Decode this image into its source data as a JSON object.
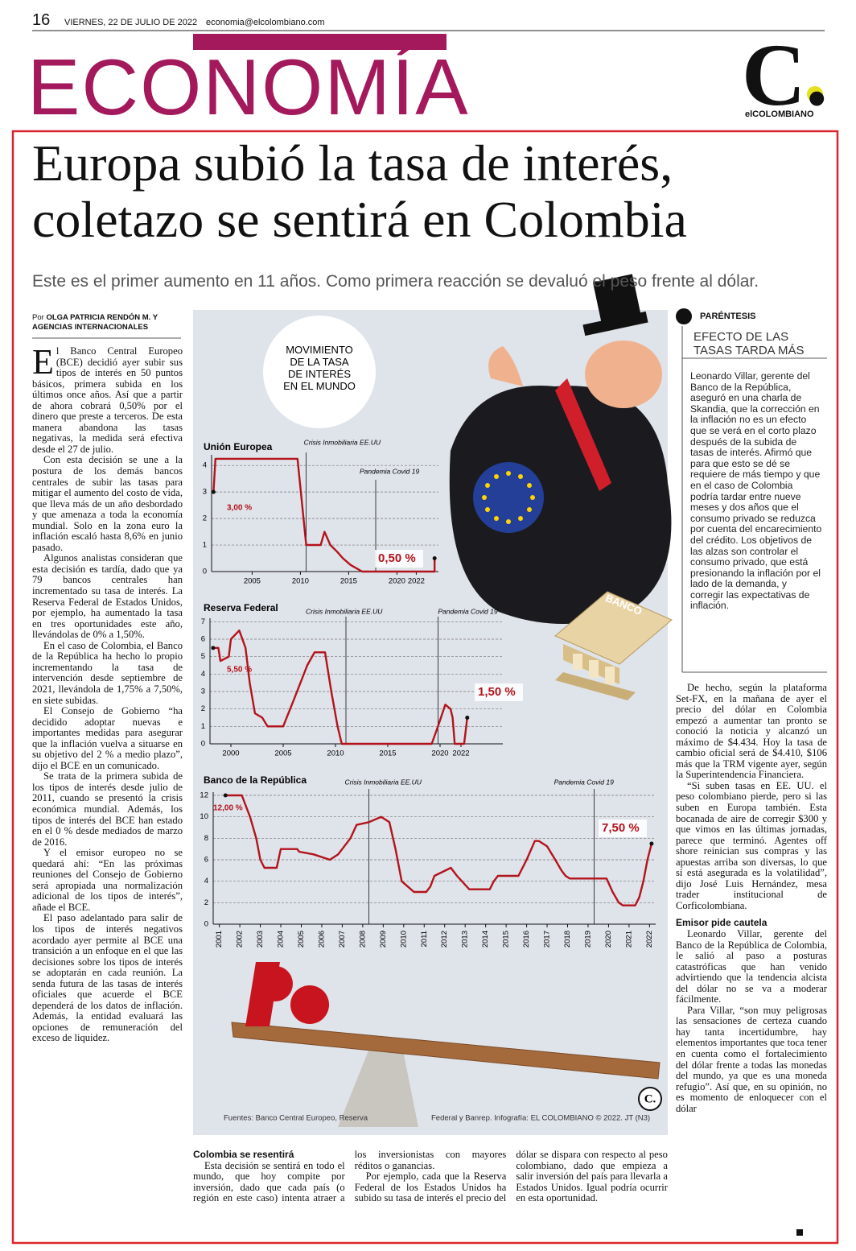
{
  "header": {
    "page_number": "16",
    "date": "VIERNES, 22 DE JULIO DE 2022",
    "email": "economia@elcolombiano.com",
    "section": "ECONOMÍA",
    "logo_mark": "C.",
    "logo_name": "elCOLOMBIANO"
  },
  "article": {
    "headline": "Europa subió la tasa de interés, coletazo se sentirá en Colombia",
    "subtitle": "Este es el primer aumento en 11 años. Como primera reacción se devaluó el peso frente al dólar.",
    "byline_prefix": "Por",
    "byline": "OLGA PATRICIA RENDÓN M. Y AGENCIAS INTERNACIONALES",
    "left_paragraphs": [
      "El Banco Central Europeo (BCE) decidió ayer subir sus tipos de interés en 50 puntos básicos, primera subida en los últimos once años. Así que a partir de ahora cobrará 0,50% por el dinero que preste a terceros. De esta manera abandona las tasas negativas, la medida será efectiva desde el 27 de julio.",
      "Con esta decisión se une a la postura de los demás bancos centrales de subir las tasas para mitigar el aumento del costo de vida, que lleva más de un año desbordado y que amenaza a toda la economía mundial. Solo en la zona euro la inflación escaló hasta 8,6% en junio pasado.",
      "Algunos analistas consideran que esta decisión es tardía, dado que ya 79 bancos centrales han incrementado su tasa de interés. La Reserva Federal de Estados Unidos, por ejemplo, ha aumentado la tasa en tres oportunidades este año, llevándolas de 0% a 1,50%.",
      "En el caso de Colombia, el Banco de la República ha hecho lo propio incrementando la tasa de intervención desde septiembre de 2021, llevándola de 1,75% a 7,50%, en siete subidas.",
      "El Consejo de Gobierno “ha decidido adoptar nuevas e importantes medidas para asegurar que la inflación vuelva a situarse en su objetivo del 2 % a medio plazo”, dijo el BCE en un comunicado.",
      "Se trata de la primera subida de los tipos de interés desde julio de 2011, cuando se presentó la crisis económica mundial. Además, los tipos de interés del BCE han estado en el 0 % desde mediados de marzo de 2016.",
      "Y el emisor europeo no se quedará ahí: “En las próximas reuniones del Consejo de Gobierno será apropiada una normalización adicional de los tipos de interés”, añade el BCE.",
      "El paso adelantado para salir de los tipos de interés negativos acordado ayer permite al BCE una transición a un enfoque en el que las decisiones sobre los tipos de interés se adoptarán en cada reunión. La senda futura de las tasas de interés oficiales que acuerde el BCE dependerá de los datos de inflación. Además, la entidad evaluará las opciones de remuneración del exceso de liquidez."
    ],
    "bottom_heading": "Colombia se resentirá",
    "bottom_paragraphs": [
      "Esta decisión se sentirá en todo el mundo, que hoy compite por inversión, dado que cada país (o región en este caso) intenta atraer a los inversionistas con mayores réditos o ganancias.",
      "Por ejemplo, cada que la Reserva Federal de los Estados Unidos ha subido su tasa de interés el precio del dólar se dispara con respecto al peso colombiano, dado que empieza a salir inversión del país para llevarla a Estados Unidos. Igual podría ocurrir en esta oportunidad."
    ],
    "right_paragraphs": [
      "De hecho, según la plataforma Set-FX, en la mañana de ayer el precio del dólar en Colombia empezó a aumentar tan pronto se conoció la noticia y alcanzó un máximo de $4.434. Hoy la tasa de cambio oficial será de $4.410, $106 más que la TRM vigente ayer, según la Superintendencia Financiera.",
      "“Si suben tasas en EE. UU. el peso colombiano pierde, pero si las suben en Europa también. Esta bocanada de aire de corregir $300 y que vimos en las últimas jornadas, parece que terminó. Agentes off shore reinician sus compras y las apuestas arriba son diversas, lo que sí está asegurada es la volatilidad”, dijo José Luis Hernández, mesa trader institucional de Corficolombiana."
    ],
    "right_heading": "Emisor pide cautela",
    "right_paragraphs_2": [
      "Leonardo Villar, gerente del Banco de la República de Colombia, le salió al paso a posturas catastróficas que han venido advirtiendo que la tendencia alcista del dólar no se va a moderar fácilmente.",
      "Para Villar, “son muy peligrosas las sensaciones de certeza cuando hay tanta incertidumbre, hay elementos importantes que toca tener en cuenta como el fortalecimiento del dólar frente a todas las monedas del mundo, ya que es una moneda refugio”. Así que, en su opinión, no es momento de enloquecer con el dólar"
    ]
  },
  "sidebar": {
    "label": "PARÉNTESIS",
    "title": "EFECTO DE LAS TASAS TARDA MÁS",
    "text": "Leonardo Villar, gerente del Banco de la República, aseguró en una charla de Skandia, que la corrección en la inflación no es un efecto que se verá en el corto plazo después de la subida de tasas de interés. Afirmó que para que esto se dé se requiere de más tiempo y que en el caso de Colombia podría tardar entre nueve meses y dos años que el consumo privado se reduzca por cuenta del encarecimiento del crédito. Los objetivos de las alzas son controlar el consumo privado, que está presionando la inflación por el lado de la demanda, y corregir las expectativas de inflación."
  },
  "infographic": {
    "title": "MOVIMIENTO DE LA TASA DE INTERÉS EN EL MUNDO",
    "bank_label": "BANCO",
    "source_left": "Fuentes: Banco Central Europeo, Reserva",
    "source_right": "Federal y Banrep. Infografía: EL COLOMBIANO © 2022. JT (N3)"
  },
  "chart_data": [
    {
      "type": "line",
      "title": "Unión Europea",
      "color": "#b3131b",
      "grid": true,
      "x": [
        2001,
        2001.2,
        2009.7,
        2010.6,
        2012.1,
        2012.5,
        2013.1,
        2013.8,
        2014.4,
        2015.2,
        2016.4,
        2023.9,
        2023.9
      ],
      "values": [
        3,
        4.25,
        4.25,
        1,
        1,
        1.5,
        1,
        0.75,
        0.5,
        0.25,
        0,
        0,
        0.5
      ],
      "xlim": [
        2000.8,
        2024.3
      ],
      "ylim": [
        0,
        4.4
      ],
      "xticks": [
        2005,
        2010,
        2015,
        2020,
        2022
      ],
      "yticks": [
        0,
        1,
        2,
        3,
        4
      ],
      "first_value_label": "3,00 %",
      "last_value_label": "0,50 %",
      "annotations": [
        {
          "label": "Crisis Inmobiliaria EE.UU",
          "x": 2010.6
        },
        {
          "label": "Pandemia Covid 19",
          "x": 2017.8
        }
      ]
    },
    {
      "type": "line",
      "title": "Reserva Federal",
      "color": "#b3131b",
      "grid": true,
      "x": [
        1998.3,
        1998.8,
        1999,
        1999.8,
        2000,
        2000.8,
        2001.4,
        2001.8,
        2002.3,
        2003,
        2003.5,
        2005,
        2006,
        2007.3,
        2008,
        2009,
        2009.6,
        2010.2,
        2010.6,
        2019.2,
        2019.8,
        2020.5,
        2021,
        2021.2,
        2021.4,
        2022.3,
        2022.6
      ],
      "values": [
        5.5,
        5.5,
        4.75,
        5,
        6,
        6.5,
        5.5,
        3.5,
        1.75,
        1.5,
        1,
        1,
        2.5,
        4.5,
        5.25,
        5.25,
        3,
        1,
        0,
        0,
        1,
        2.25,
        2,
        1.5,
        0,
        0,
        1.5
      ],
      "xlim": [
        1998,
        2026
      ],
      "ylim": [
        0,
        7.2
      ],
      "xticks": [
        2000,
        2005,
        2010,
        2015,
        2020,
        2022
      ],
      "yticks": [
        0,
        1,
        2,
        3,
        4,
        5,
        6,
        7
      ],
      "first_value_label": "5,50 %",
      "last_value_label": "1,50 %",
      "annotations": [
        {
          "label": "Crisis Inmobiliaria EE.UU",
          "x": 2011
        },
        {
          "label": "Pandemia Covid 19",
          "x": 2019.8
        }
      ]
    },
    {
      "type": "line",
      "title": "Banco de la República",
      "color": "#b3131b",
      "grid": true,
      "x": [
        2001.3,
        2002.1,
        2002.5,
        2002.8,
        2003.0,
        2003.2,
        2003.8,
        2004.0,
        2004.8,
        2004.9,
        2005.6,
        2006.4,
        2006.8,
        2007.4,
        2007.7,
        2008.3,
        2008.9,
        2009.3,
        2009.6,
        2009.9,
        2010.2,
        2010.5,
        2011.1,
        2011.3,
        2011.5,
        2012.3,
        2012.6,
        2013.2,
        2014.2,
        2014.4,
        2014.6,
        2015.6,
        2016.0,
        2016.4,
        2016.6,
        2017.0,
        2017.4,
        2017.7,
        2017.9,
        2018.1,
        2019.9,
        2020.2,
        2020.5,
        2020.7,
        2021.3,
        2021.5,
        2021.7,
        2021.9,
        2022.1
      ],
      "values": [
        12,
        12,
        10,
        8,
        6,
        5.25,
        5.25,
        7,
        7,
        6.75,
        6.5,
        6,
        6.5,
        8,
        9.25,
        9.5,
        10,
        9.5,
        7,
        4,
        3.5,
        3,
        3,
        3.5,
        4.5,
        5.25,
        4.5,
        3.25,
        3.25,
        4,
        4.5,
        4.5,
        6,
        7.75,
        7.75,
        7.25,
        6,
        5,
        4.5,
        4.25,
        4.25,
        3,
        2,
        1.75,
        1.75,
        2.5,
        4,
        6,
        7.5
      ],
      "xlim": [
        2000.7,
        2022.3
      ],
      "ylim": [
        0,
        12.3
      ],
      "xticks": [
        2001,
        2002,
        2003,
        2004,
        2005,
        2006,
        2007,
        2008,
        2009,
        2010,
        2011,
        2012,
        2013,
        2014,
        2015,
        2016,
        2017,
        2018,
        2019,
        2020,
        2021,
        2022
      ],
      "yticks": [
        0,
        2,
        4,
        6,
        8,
        10,
        12
      ],
      "first_value_label": "12,00 %",
      "last_value_label": "7,50 %",
      "annotations": [
        {
          "label": "Crisis Inmobiliaria EE.UU",
          "x": 2008.3
        },
        {
          "label": "Pandemia Covid 19",
          "x": 2019.3
        }
      ]
    }
  ]
}
